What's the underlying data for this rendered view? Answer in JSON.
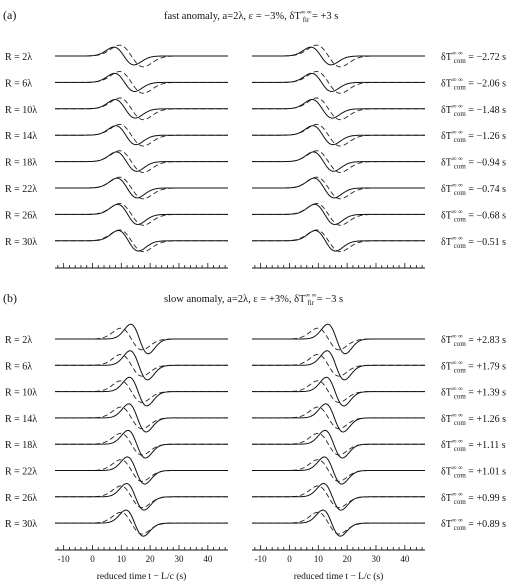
{
  "panels": [
    {
      "label": "(a)",
      "title": "fast anomaly, a=2λ, ε = −3%, δT",
      "title_sub": "fir",
      "title_sup": "∞ ∞",
      "title_tail": " = +3 s",
      "rows": [
        "R = 2λ",
        "R = 6λ",
        "R = 10λ",
        "R = 14λ",
        "R = 18λ",
        "R = 22λ",
        "R = 26λ",
        "R = 30λ"
      ],
      "delays": [
        "−2.72 s",
        "−2.06 s",
        "−1.48 s",
        "−1.26 s",
        "−0.94 s",
        "−0.74 s",
        "−0.68 s",
        "−0.51 s"
      ],
      "anomaly_sign": -1
    },
    {
      "label": "(b)",
      "title": "slow anomaly, a=2λ, ε = +3%, δT",
      "title_sub": "fir",
      "title_sup": "∞ ∞",
      "title_tail": " = −3 s",
      "rows": [
        "R = 2λ",
        "R = 6λ",
        "R = 10λ",
        "R = 14λ",
        "R = 18λ",
        "R = 22λ",
        "R = 26λ",
        "R = 30λ"
      ],
      "delays": [
        "+2.83 s",
        "+1.79 s",
        "+1.39 s",
        "+1.26 s",
        "+1.11 s",
        "+1.01 s",
        "+0.99 s",
        "+0.89 s"
      ],
      "anomaly_sign": 1
    }
  ],
  "delay_prefix": "δT",
  "delay_sub": "com",
  "delay_sup": "∞ ∞",
  "delay_eq": " = ",
  "x_ticks": [
    "-10",
    "0",
    "10",
    "20",
    "30",
    "40"
  ],
  "x_tick_values": [
    -10,
    0,
    10,
    20,
    30,
    40
  ],
  "x_range": [
    -13,
    47
  ],
  "x_label": "reduced time t − L/c (s)"
}
